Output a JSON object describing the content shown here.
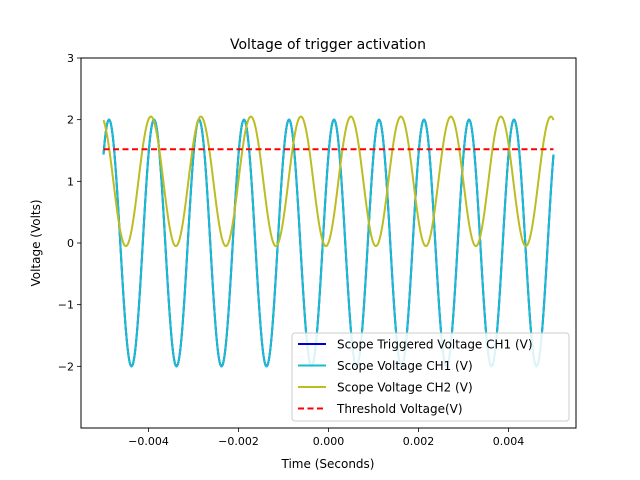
{
  "chart_data": {
    "type": "line",
    "title": "Voltage of trigger activation",
    "xlabel": "Time (Seconds)",
    "ylabel": "Voltage (Volts)",
    "xlim": [
      -0.0055,
      0.0055
    ],
    "ylim": [
      -3.0,
      3.0
    ],
    "x_ticks": [
      -0.004,
      -0.002,
      0.0,
      0.002,
      0.004
    ],
    "x_tick_labels": [
      "−0.004",
      "−0.002",
      "0.000",
      "0.002",
      "0.004"
    ],
    "y_ticks": [
      -2,
      -1,
      0,
      1,
      2,
      3
    ],
    "y_tick_labels": [
      "−2",
      "−1",
      "0",
      "1",
      "2",
      "3"
    ],
    "grid": false,
    "legend_position": "lower-right",
    "series": [
      {
        "name": "Scope Triggered Voltage CH1 (V)",
        "color": "#0000cc",
        "style": "solid",
        "model": "sine",
        "x_range": [
          -0.005,
          0.005
        ],
        "amplitude": 2.0,
        "offset": 0.0,
        "frequency_hz": 1000,
        "phase_rad": 0.8,
        "covered": true
      },
      {
        "name": "Scope Voltage CH1 (V)",
        "color": "#17becf",
        "style": "solid",
        "model": "sine",
        "x_range": [
          -0.005,
          0.005
        ],
        "amplitude": 2.0,
        "offset": 0.0,
        "frequency_hz": 1000,
        "phase_rad": 0.8
      },
      {
        "name": "Scope Voltage CH2 (V)",
        "color": "#bcbd22",
        "style": "solid",
        "model": "sine",
        "x_range": [
          -0.005,
          0.005
        ],
        "amplitude": 1.05,
        "offset": 1.0,
        "frequency_hz": 900,
        "phase_rad": -1.24
      },
      {
        "name": "Threshold Voltage(V)",
        "color": "#ff0000",
        "style": "dashed",
        "model": "constant",
        "x_range": [
          -0.005,
          0.005
        ],
        "value": 1.52
      }
    ]
  }
}
